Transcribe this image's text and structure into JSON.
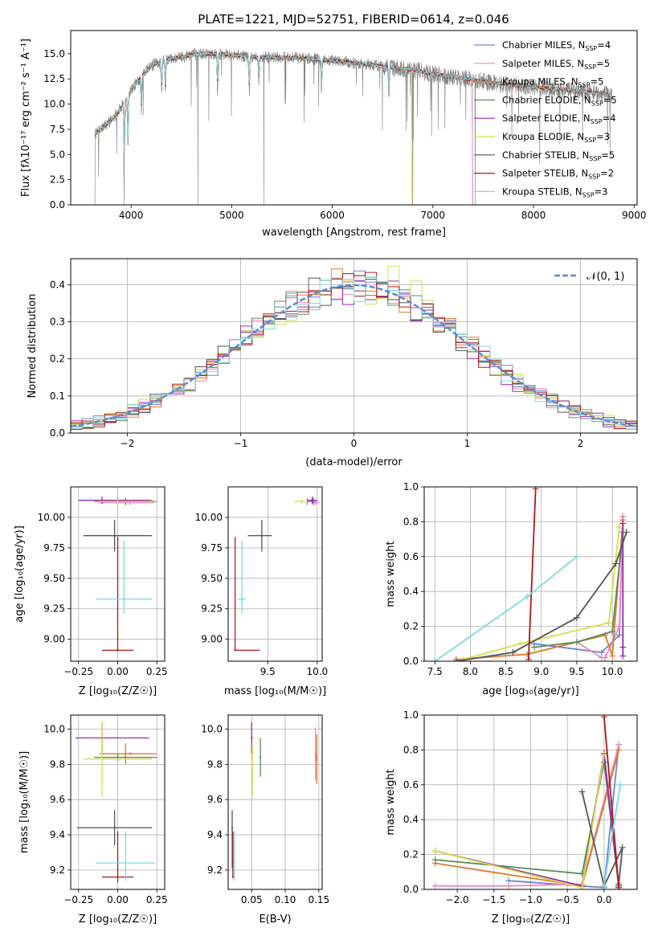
{
  "title": "PLATE=1221, MJD=52751, FIBERID=0614, z=0.046",
  "colors": {
    "Chabrier MILES": "#6b82d6",
    "Salpeter MILES": "#e88ac0",
    "Kroupa MILES": "#e07a2a",
    "Chabrier ELODIE": "#5a8a5a",
    "Salpeter ELODIE": "#9a2ab0",
    "Kroupa ELODIE": "#d4e04a",
    "Chabrier STELIB": "#555555",
    "Salpeter STELIB": "#b01818",
    "Kroupa STELIB": "#7fd9dc",
    "data": "#808080",
    "gaussian": "#5b8bd9"
  },
  "legend_items": [
    {
      "model": "Chabrier MILES",
      "prefix": "Chabrier MILES, N",
      "nssp": "=4"
    },
    {
      "model": "Salpeter MILES",
      "prefix": "Salpeter MILES, N",
      "nssp": "=5"
    },
    {
      "model": "Kroupa MILES",
      "prefix": "Kroupa MILES, N",
      "nssp": "=5"
    },
    {
      "model": "Chabrier ELODIE",
      "prefix": "Chabrier ELODIE, N",
      "nssp": "=5"
    },
    {
      "model": "Salpeter ELODIE",
      "prefix": "Salpeter ELODIE, N",
      "nssp": "=4"
    },
    {
      "model": "Kroupa ELODIE",
      "prefix": "Kroupa ELODIE, N",
      "nssp": "=3"
    },
    {
      "model": "Chabrier STELIB",
      "prefix": "Chabrier STELIB, N",
      "nssp": "=5"
    },
    {
      "model": "Salpeter STELIB",
      "prefix": "Salpeter STELIB, N",
      "nssp": "=2"
    },
    {
      "model": "Kroupa STELIB",
      "prefix": "Kroupa STELIB, N",
      "nssp": "=3"
    }
  ],
  "legend_subscript": "SSP",
  "gauss_legend": "𝒩(0, 1)",
  "chart_data": [
    {
      "id": "spectrum",
      "type": "line",
      "title": "PLATE=1221, MJD=52751, FIBERID=0614, z=0.046",
      "xlabel": "wavelength [Angstrom, rest frame]",
      "ylabel": "Flux [fλ10⁻¹⁷ erg cm⁻² s⁻¹ A⁻¹]",
      "xlim": [
        3400,
        9030
      ],
      "ylim": [
        0,
        17.3
      ],
      "xticks": [
        4000,
        5000,
        6000,
        7000,
        8000,
        9000
      ],
      "yticks": [
        0.0,
        2.5,
        5.0,
        7.5,
        10.0,
        12.5,
        15.0
      ],
      "legend": "upper right",
      "continuum_x": [
        3640,
        3700,
        3800,
        3900,
        4000,
        4100,
        4200,
        4300,
        4400,
        4600,
        4800,
        5000,
        5200,
        5400,
        5600,
        5800,
        6000,
        6200,
        6400,
        6600,
        6800,
        7000,
        7200,
        7400,
        7600,
        7800,
        8000,
        8200,
        8400,
        8600,
        8780
      ],
      "continuum_y": [
        7.0,
        7.5,
        8.4,
        9.6,
        11.4,
        12.7,
        13.8,
        14.2,
        14.5,
        14.9,
        15.0,
        14.9,
        14.7,
        14.6,
        14.6,
        14.5,
        14.3,
        14.1,
        13.9,
        13.6,
        13.4,
        13.0,
        12.7,
        12.4,
        12.1,
        11.9,
        11.7,
        11.5,
        11.3,
        11.1,
        10.9
      ],
      "absorption_lines": [
        [
          3934,
          5.2
        ],
        [
          3969,
          4.8
        ],
        [
          4102,
          3.5
        ],
        [
          4304,
          3.0
        ],
        [
          4341,
          3.2
        ],
        [
          4861,
          4.0
        ],
        [
          5175,
          3.5
        ],
        [
          5270,
          2.5
        ],
        [
          5893,
          3.0
        ],
        [
          6563,
          3.0
        ]
      ],
      "data_dropouts": [
        3640,
        3930,
        4665,
        5320,
        6800,
        7420
      ]
    },
    {
      "id": "residuals",
      "type": "histogram",
      "xlabel": "(data-model)/error",
      "ylabel": "Normed distribution",
      "xlim": [
        -2.5,
        2.5
      ],
      "ylim": [
        0,
        0.47
      ],
      "xticks": [
        -2,
        -1,
        0,
        1,
        2
      ],
      "yticks": [
        0.0,
        0.1,
        0.2,
        0.3,
        0.4
      ],
      "grid": true,
      "bin_width": 0.1,
      "series_name": "𝒩(0, 1)",
      "spike_bins": {
        "Kroupa ELODIE": [
          [
            0.35,
            0.45
          ],
          [
            0.55,
            0.41
          ]
        ],
        "Salpeter MILES": [
          [
            0.15,
            0.42
          ]
        ]
      }
    },
    {
      "id": "age_vs_Z",
      "type": "errorbar",
      "xlabel": "Z [log₁₀(Z/Z☉)]",
      "ylabel": "age  [log₁₀(age/yr)]",
      "xlim": [
        -0.3,
        0.3
      ],
      "ylim": [
        8.82,
        10.25
      ],
      "xticks": [
        -0.25,
        0.0,
        0.25
      ],
      "yticks": [
        9.0,
        9.25,
        9.5,
        9.75,
        10.0
      ],
      "points": [
        {
          "model": "Chabrier MILES",
          "x": 0.05,
          "xerr": [
            0.15,
            0.15
          ],
          "y": 10.13,
          "yerr": [
            0.03,
            0.03
          ]
        },
        {
          "model": "Salpeter MILES",
          "x": 0.08,
          "xerr": [
            0.2,
            0.15
          ],
          "y": 10.12,
          "yerr": [
            0.02,
            0.02
          ]
        },
        {
          "model": "Kroupa MILES",
          "x": 0.05,
          "xerr": [
            0.2,
            0.2
          ],
          "y": 10.13,
          "yerr": [
            0.03,
            0.03
          ]
        },
        {
          "model": "Chabrier ELODIE",
          "x": 0.0,
          "xerr": [
            0.12,
            0.22
          ],
          "y": 10.14,
          "yerr": [
            0.02,
            0.02
          ]
        },
        {
          "model": "Salpeter ELODIE",
          "x": -0.1,
          "xerr": [
            0.15,
            0.3
          ],
          "y": 10.14,
          "yerr": [
            0.03,
            0.03
          ]
        },
        {
          "model": "Kroupa ELODIE",
          "x": 0.0,
          "xerr": [
            0.12,
            0.22
          ],
          "y": 10.13,
          "yerr": [
            0.02,
            0.02
          ]
        },
        {
          "model": "Chabrier STELIB",
          "x": -0.02,
          "xerr": [
            0.2,
            0.24
          ],
          "y": 9.85,
          "yerr": [
            0.13,
            0.13
          ]
        },
        {
          "model": "Salpeter STELIB",
          "x": 0.0,
          "xerr": [
            0.1,
            0.1
          ],
          "y": 8.91,
          "yerr": [
            0.0,
            0.93
          ]
        },
        {
          "model": "Kroupa STELIB",
          "x": 0.04,
          "xerr": [
            0.18,
            0.18
          ],
          "y": 9.33,
          "yerr": [
            0.12,
            0.48
          ]
        }
      ]
    },
    {
      "id": "age_vs_mass",
      "type": "errorbar",
      "xlabel": "mass [log₁₀(M/M☉)]",
      "ylabel": "",
      "xlim": [
        9.1,
        10.05
      ],
      "ylim": [
        8.82,
        10.25
      ],
      "xticks": [
        9.5,
        10.0
      ],
      "yticks": [
        9.0,
        9.25,
        9.5,
        9.75,
        10.0
      ],
      "points": [
        {
          "model": "Chabrier MILES",
          "x": 9.96,
          "xerr": [
            0.03,
            0.03
          ],
          "y": 10.13,
          "yerr": [
            0.03,
            0.03
          ]
        },
        {
          "model": "Salpeter MILES",
          "x": 9.98,
          "xerr": [
            0.04,
            0.04
          ],
          "y": 10.12,
          "yerr": [
            0.02,
            0.02
          ]
        },
        {
          "model": "Kroupa MILES",
          "x": 9.9,
          "xerr": [
            0.06,
            0.03
          ],
          "y": 10.13,
          "yerr": [
            0.03,
            0.03
          ]
        },
        {
          "model": "Chabrier ELODIE",
          "x": 9.95,
          "xerr": [
            0.05,
            0.04
          ],
          "y": 10.14,
          "yerr": [
            0.02,
            0.02
          ]
        },
        {
          "model": "Salpeter ELODIE",
          "x": 9.95,
          "xerr": [
            0.05,
            0.05
          ],
          "y": 10.14,
          "yerr": [
            0.03,
            0.03
          ]
        },
        {
          "model": "Kroupa ELODIE",
          "x": 9.85,
          "xerr": [
            0.08,
            0.05
          ],
          "y": 10.13,
          "yerr": [
            0.02,
            0.02
          ]
        },
        {
          "model": "Chabrier STELIB",
          "x": 9.44,
          "xerr": [
            0.14,
            0.1
          ],
          "y": 9.85,
          "yerr": [
            0.13,
            0.13
          ]
        },
        {
          "model": "Salpeter STELIB",
          "x": 9.17,
          "xerr": [
            0.0,
            0.25
          ],
          "y": 8.91,
          "yerr": [
            0.0,
            0.93
          ]
        },
        {
          "model": "Kroupa STELIB",
          "x": 9.24,
          "xerr": [
            0.04,
            0.04
          ],
          "y": 9.33,
          "yerr": [
            0.12,
            0.48
          ]
        }
      ]
    },
    {
      "id": "weight_vs_age",
      "type": "line",
      "xlabel": "age  [log₁₀(age/yr)]",
      "ylabel": "mass weight",
      "xlim": [
        7.35,
        10.35
      ],
      "ylim": [
        0,
        1.0
      ],
      "xticks": [
        7.5,
        8.0,
        8.5,
        9.0,
        9.5,
        10.0
      ],
      "yticks": [
        0.0,
        0.2,
        0.4,
        0.6,
        0.8,
        1.0
      ],
      "series": [
        {
          "model": "Chabrier MILES",
          "x": [
            8.9,
            9.85,
            10.1,
            10.15
          ],
          "y": [
            0.1,
            0.05,
            0.15,
            0.83
          ]
        },
        {
          "model": "Salpeter MILES",
          "x": [
            9.5,
            9.85,
            9.9,
            10.1,
            10.15
          ],
          "y": [
            0.11,
            0.02,
            0.02,
            0.2,
            0.83
          ]
        },
        {
          "model": "Kroupa MILES",
          "x": [
            7.8,
            8.8,
            9.9,
            10.0,
            10.15
          ],
          "y": [
            0.01,
            0.04,
            0.15,
            0.03,
            0.81
          ]
        },
        {
          "model": "Chabrier ELODIE",
          "x": [
            8.9,
            9.5,
            10.0,
            10.15
          ],
          "y": [
            0.08,
            0.11,
            0.17,
            0.74
          ]
        },
        {
          "model": "Salpeter ELODIE",
          "x": [
            10.15,
            10.15,
            10.15
          ],
          "y": [
            0.03,
            0.08,
            0.79
          ]
        },
        {
          "model": "Kroupa ELODIE",
          "x": [
            7.9,
            8.7,
            9.95,
            10.1
          ],
          "y": [
            0.01,
            0.1,
            0.22,
            0.77
          ]
        },
        {
          "model": "Chabrier STELIB",
          "x": [
            7.8,
            8.6,
            9.5,
            10.05,
            10.2
          ],
          "y": [
            0.0,
            0.05,
            0.25,
            0.56,
            0.74
          ]
        },
        {
          "model": "Salpeter STELIB",
          "x": [
            8.82,
            8.92
          ],
          "y": [
            0.01,
            0.99
          ]
        },
        {
          "model": "Kroupa STELIB",
          "x": [
            7.5,
            8.8,
            9.5
          ],
          "y": [
            0.0,
            0.37,
            0.6
          ]
        }
      ]
    },
    {
      "id": "mass_vs_Z",
      "type": "errorbar",
      "xlabel": "Z [log₁₀(Z/Z☉)]",
      "ylabel": "mass [log₁₀(M/M☉)]",
      "xlim": [
        -0.3,
        0.3
      ],
      "ylim": [
        9.09,
        10.08
      ],
      "xticks": [
        -0.25,
        0.0,
        0.25
      ],
      "yticks": [
        9.2,
        9.4,
        9.6,
        9.8,
        10.0
      ],
      "points": [
        {
          "model": "Chabrier MILES",
          "x": 0.05,
          "xerr": [
            0.15,
            0.2
          ],
          "y": 9.84,
          "yerr": [
            0.02,
            0.02
          ]
        },
        {
          "model": "Salpeter MILES",
          "x": 0.08,
          "xerr": [
            0.2,
            0.15
          ],
          "y": 9.86,
          "yerr": [
            0.01,
            0.01
          ]
        },
        {
          "model": "Kroupa MILES",
          "x": 0.05,
          "xerr": [
            0.15,
            0.2
          ],
          "y": 9.86,
          "yerr": [
            0.06,
            0.06
          ]
        },
        {
          "model": "Chabrier ELODIE",
          "x": 0.0,
          "xerr": [
            0.15,
            0.22
          ],
          "y": 9.84,
          "yerr": [
            0.02,
            0.02
          ]
        },
        {
          "model": "Salpeter ELODIE",
          "x": -0.1,
          "xerr": [
            0.17,
            0.3
          ],
          "y": 9.95,
          "yerr": [
            0.09,
            0.09
          ]
        },
        {
          "model": "Kroupa ELODIE",
          "x": -0.1,
          "xerr": [
            0.12,
            0.32
          ],
          "y": 9.83,
          "yerr": [
            0.21,
            0.21
          ]
        },
        {
          "model": "Chabrier STELIB",
          "x": -0.02,
          "xerr": [
            0.24,
            0.24
          ],
          "y": 9.44,
          "yerr": [
            0.1,
            0.1
          ]
        },
        {
          "model": "Salpeter STELIB",
          "x": 0.0,
          "xerr": [
            0.1,
            0.1
          ],
          "y": 9.16,
          "yerr": [
            0.03,
            0.26
          ]
        },
        {
          "model": "Kroupa STELIB",
          "x": 0.05,
          "xerr": [
            0.19,
            0.19
          ],
          "y": 9.24,
          "yerr": [
            0.1,
            0.18
          ]
        }
      ]
    },
    {
      "id": "mass_vs_ebv",
      "type": "errorbar",
      "xlabel": "E(B-V)",
      "ylabel": "",
      "xlim": [
        0.015,
        0.155
      ],
      "ylim": [
        9.09,
        10.08
      ],
      "xticks": [
        0.05,
        0.1,
        0.15
      ],
      "yticks": [
        9.2,
        9.4,
        9.6,
        9.8,
        10.0
      ],
      "points": [
        {
          "model": "Chabrier MILES",
          "x": 0.146,
          "xerr": [
            0,
            0
          ],
          "y": 9.84,
          "yerr": [
            0.02,
            0.02
          ]
        },
        {
          "model": "Salpeter MILES",
          "x": 0.145,
          "xerr": [
            0,
            0
          ],
          "y": 9.86,
          "yerr": [
            0.15,
            0.15
          ]
        },
        {
          "model": "Kroupa MILES",
          "x": 0.147,
          "xerr": [
            0,
            0
          ],
          "y": 9.83,
          "yerr": [
            0.14,
            0.14
          ]
        },
        {
          "model": "Chabrier ELODIE",
          "x": 0.063,
          "xerr": [
            0,
            0
          ],
          "y": 9.84,
          "yerr": [
            0.11,
            0.11
          ]
        },
        {
          "model": "Salpeter ELODIE",
          "x": 0.05,
          "xerr": [
            0,
            0
          ],
          "y": 9.95,
          "yerr": [
            0.09,
            0.09
          ]
        },
        {
          "model": "Kroupa ELODIE",
          "x": 0.051,
          "xerr": [
            0,
            0
          ],
          "y": 9.8,
          "yerr": [
            0.18,
            0.12
          ]
        },
        {
          "model": "Chabrier STELIB",
          "x": 0.021,
          "xerr": [
            0,
            0
          ],
          "y": 9.44,
          "yerr": [
            0.23,
            0.1
          ]
        },
        {
          "model": "Salpeter STELIB",
          "x": 0.022,
          "xerr": [
            0,
            0
          ],
          "y": 9.16,
          "yerr": [
            0.0,
            0.26
          ]
        },
        {
          "model": "Kroupa STELIB",
          "x": 0.024,
          "xerr": [
            0,
            0
          ],
          "y": 9.24,
          "yerr": [
            0.1,
            0.18
          ]
        }
      ]
    },
    {
      "id": "weight_vs_Z",
      "type": "line",
      "xlabel": "Z [log₁₀(Z/Z☉)]",
      "ylabel": "mass weight",
      "xlim": [
        -2.45,
        0.45
      ],
      "ylim": [
        0,
        1.0
      ],
      "xticks": [
        -2.0,
        -1.5,
        -1.0,
        -0.5,
        0.0
      ],
      "yticks": [
        0.0,
        0.2,
        0.4,
        0.6,
        0.8,
        1.0
      ],
      "series": [
        {
          "model": "Chabrier MILES",
          "x": [
            -1.3,
            0.0,
            0.2
          ],
          "y": [
            0.05,
            0.01,
            0.83
          ]
        },
        {
          "model": "Salpeter MILES",
          "x": [
            -2.3,
            -1.3,
            -0.3,
            0.2
          ],
          "y": [
            0.02,
            0.02,
            0.03,
            0.83
          ]
        },
        {
          "model": "Kroupa MILES",
          "x": [
            -2.3,
            -0.3,
            0.2
          ],
          "y": [
            0.15,
            0.02,
            0.8
          ]
        },
        {
          "model": "Chabrier ELODIE",
          "x": [
            -2.3,
            -0.3,
            0.0,
            0.2
          ],
          "y": [
            0.17,
            0.09,
            0.73,
            0.01
          ]
        },
        {
          "model": "Salpeter ELODIE",
          "x": [
            -2.3,
            -0.3,
            0.0,
            0.2
          ],
          "y": [
            0.22,
            0.02,
            0.78,
            0.02
          ]
        },
        {
          "model": "Kroupa ELODIE",
          "x": [
            -2.3,
            -0.3,
            0.0
          ],
          "y": [
            0.22,
            0.01,
            0.77
          ]
        },
        {
          "model": "Chabrier STELIB",
          "x": [
            -0.3,
            0.0,
            0.25,
            0.2
          ],
          "y": [
            0.56,
            0.02,
            0.24,
            0.03
          ]
        },
        {
          "model": "Salpeter STELIB",
          "x": [
            0.0,
            0.2
          ],
          "y": [
            0.99,
            0.01
          ]
        },
        {
          "model": "Kroupa STELIB",
          "x": [
            0.0,
            0.22
          ],
          "y": [
            0.02,
            0.6
          ]
        }
      ]
    }
  ]
}
